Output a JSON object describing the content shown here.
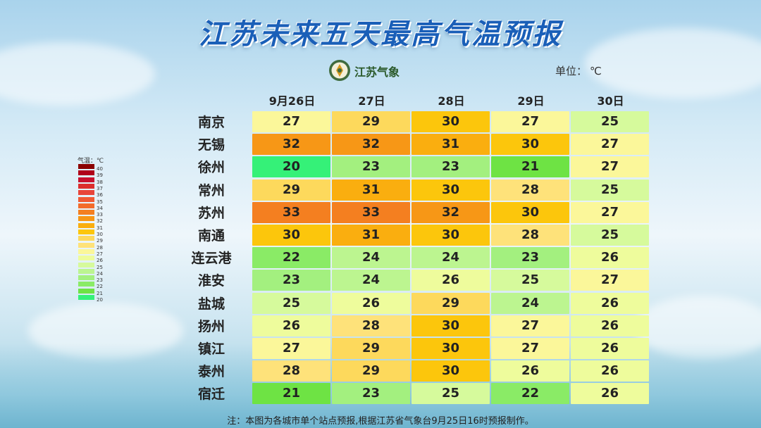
{
  "header": {
    "title": "江苏未来五天最高气温预报",
    "logo_text": "江苏气象",
    "unit_label": "单位：",
    "unit_value": "℃"
  },
  "chart_data": {
    "type": "table",
    "title": "江苏未来五天最高气温预报",
    "columns": [
      "9月26日",
      "27日",
      "28日",
      "29日",
      "30日"
    ],
    "rows": [
      {
        "city": "南京",
        "values": [
          27,
          29,
          30,
          27,
          25
        ]
      },
      {
        "city": "无锡",
        "values": [
          32,
          32,
          31,
          30,
          27
        ]
      },
      {
        "city": "徐州",
        "values": [
          20,
          23,
          23,
          21,
          27
        ]
      },
      {
        "city": "常州",
        "values": [
          29,
          31,
          30,
          28,
          25
        ]
      },
      {
        "city": "苏州",
        "values": [
          33,
          33,
          32,
          30,
          27
        ]
      },
      {
        "city": "南通",
        "values": [
          30,
          31,
          30,
          28,
          25
        ]
      },
      {
        "city": "连云港",
        "values": [
          22,
          24,
          24,
          23,
          26
        ]
      },
      {
        "city": "淮安",
        "values": [
          23,
          24,
          26,
          25,
          27
        ]
      },
      {
        "city": "盐城",
        "values": [
          25,
          26,
          29,
          24,
          26
        ]
      },
      {
        "city": "扬州",
        "values": [
          26,
          28,
          30,
          27,
          26
        ]
      },
      {
        "city": "镇江",
        "values": [
          27,
          29,
          30,
          27,
          26
        ]
      },
      {
        "city": "泰州",
        "values": [
          28,
          29,
          30,
          26,
          26
        ]
      },
      {
        "city": "宿迁",
        "values": [
          21,
          23,
          25,
          22,
          26
        ]
      }
    ],
    "unit": "℃"
  },
  "legend": {
    "title": "气温：℃",
    "levels": [
      40,
      39,
      38,
      37,
      36,
      35,
      34,
      33,
      32,
      31,
      30,
      29,
      28,
      27,
      26,
      25,
      24,
      23,
      22,
      21,
      20
    ],
    "colors": {
      "40": "#8b0000",
      "39": "#b0001a",
      "38": "#c8102e",
      "37": "#dc2d2d",
      "36": "#e8453a",
      "35": "#f05a35",
      "34": "#f36b2a",
      "33": "#f47f20",
      "32": "#f79716",
      "31": "#faae0f",
      "30": "#fcc60c",
      "29": "#fdd95c",
      "28": "#fee27a",
      "27": "#fbf79a",
      "26": "#eefc9c",
      "25": "#d6fa9c",
      "24": "#bcf590",
      "23": "#a3f07f",
      "22": "#8aeb66",
      "21": "#6ee344",
      "20": "#35f178"
    }
  },
  "footer": {
    "note": "注：本图为各城市单个站点预报,根据江苏省气象台9月25日16时预报制作。"
  }
}
